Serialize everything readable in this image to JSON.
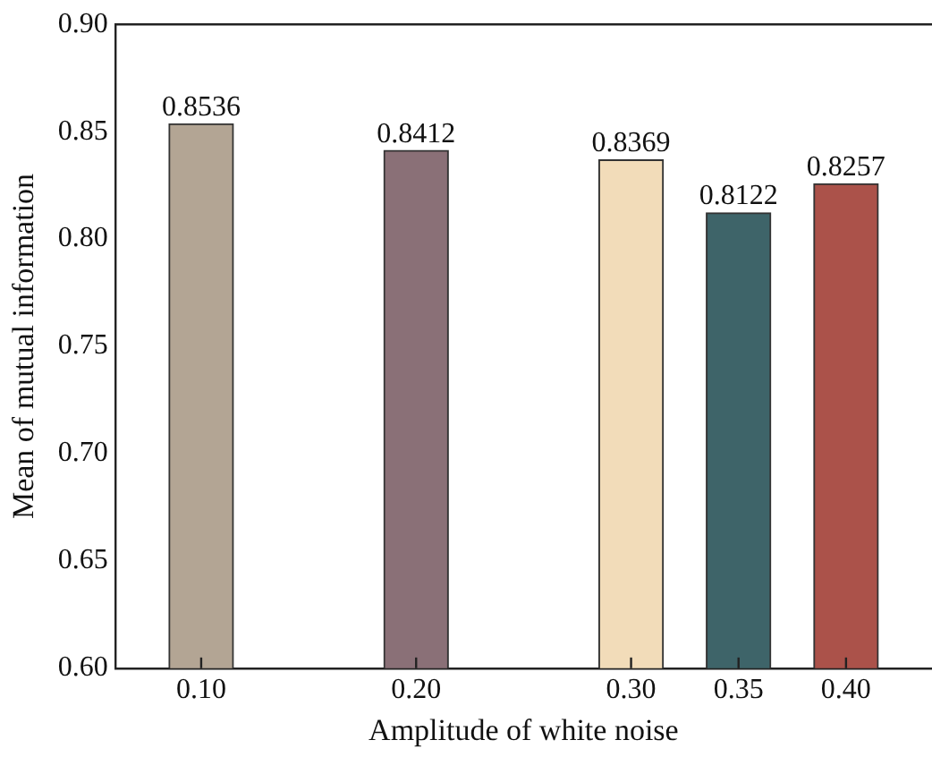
{
  "chart_data": {
    "type": "bar",
    "xlabel": "Amplitude of white noise",
    "ylabel": "Mean of mutual information",
    "x": [
      0.1,
      0.2,
      0.3,
      0.35,
      0.4
    ],
    "values": [
      0.8536,
      0.8412,
      0.8369,
      0.8122,
      0.8257
    ],
    "colors": [
      "#b3a594",
      "#8a7077",
      "#f2dcb9",
      "#3e6469",
      "#ab524a"
    ],
    "data_labels": true,
    "xlim": [
      0.06,
      0.44
    ],
    "xticks": [
      {
        "value": 0.1,
        "label": "0.10"
      },
      {
        "value": 0.2,
        "label": "0.20"
      },
      {
        "value": 0.3,
        "label": "0.30"
      },
      {
        "value": 0.35,
        "label": "0.35"
      },
      {
        "value": 0.4,
        "label": "0.40"
      }
    ],
    "ylim": [
      0.6,
      0.9
    ],
    "yticks": [
      {
        "value": 0.6,
        "label": "0.60"
      },
      {
        "value": 0.65,
        "label": "0.65"
      },
      {
        "value": 0.7,
        "label": "0.70"
      },
      {
        "value": 0.75,
        "label": "0.75"
      },
      {
        "value": 0.8,
        "label": "0.80"
      },
      {
        "value": 0.85,
        "label": "0.85"
      },
      {
        "value": 0.9,
        "label": "0.90"
      }
    ]
  }
}
